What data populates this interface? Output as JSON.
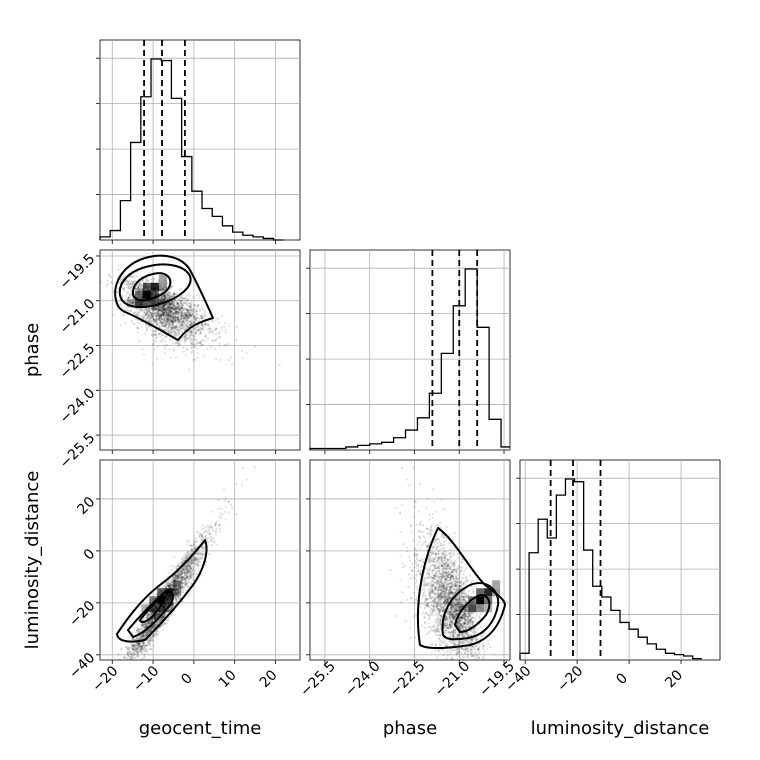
{
  "chart_data": {
    "type": "corner",
    "parameters": [
      "geocent_time",
      "phase",
      "luminosity_distance"
    ],
    "axes": {
      "geocent_time": {
        "label": "geocent_time",
        "range": [
          -23,
          26
        ],
        "ticks": [
          -20,
          -10,
          0,
          10,
          20
        ],
        "tick_labels": [
          "−20",
          "−10",
          "0",
          "10",
          "20"
        ]
      },
      "phase": {
        "label": "phase",
        "range": [
          -26,
          -19.3
        ],
        "ticks": [
          -25.5,
          -24.0,
          -22.5,
          -21.0,
          -19.5
        ],
        "tick_labels": [
          "−25.5",
          "−24.0",
          "−22.5",
          "−21.0",
          "−19.5"
        ]
      },
      "luminosity_distance": {
        "label": "luminosity_distance",
        "range": [
          -42,
          35
        ],
        "ticks": [
          -40,
          -20,
          0,
          20
        ],
        "tick_labels": [
          "−40",
          "−20",
          "0",
          "20"
        ]
      }
    },
    "histograms": [
      {
        "param": "geocent_time",
        "bin_edges": [
          -23,
          -20.5,
          -18,
          -15.5,
          -13,
          -10.5,
          -8,
          -5.5,
          -3,
          -0.5,
          2,
          4.5,
          7,
          9.5,
          12,
          14.5,
          17,
          19.5,
          22
        ],
        "counts": [
          2,
          6,
          25,
          62,
          91,
          115,
          114,
          90,
          53,
          31,
          20,
          15,
          9,
          5,
          3,
          2,
          1,
          0
        ],
        "quantiles": [
          -12.2,
          -7.8,
          -2.2
        ]
      },
      {
        "param": "phase",
        "bin_edges": [
          -26,
          -25.6,
          -25.2,
          -24.8,
          -24.4,
          -24.0,
          -23.6,
          -23.2,
          -22.8,
          -22.4,
          -22.0,
          -21.6,
          -21.2,
          -20.8,
          -20.4,
          -20.0,
          -19.6,
          -19.3
        ],
        "counts": [
          1,
          1,
          1,
          2,
          3,
          4,
          5,
          8,
          13,
          21,
          37,
          63,
          94,
          118,
          80,
          20,
          2
        ],
        "quantiles": [
          -21.9,
          -21.0,
          -20.4
        ]
      },
      {
        "param": "luminosity_distance",
        "bin_edges": [
          -42,
          -38.5,
          -35,
          -31.5,
          -28,
          -24.5,
          -21,
          -17.5,
          -14,
          -10.5,
          -7,
          -3.5,
          0,
          3.5,
          7,
          10.5,
          14,
          17.5,
          21,
          24.5,
          28
        ],
        "counts": [
          5,
          80,
          105,
          91,
          123,
          135,
          133,
          82,
          55,
          47,
          37,
          28,
          23,
          17,
          12,
          8,
          5,
          4,
          3,
          1
        ],
        "quantiles": [
          -30.2,
          -21.6,
          -11.0
        ]
      }
    ],
    "scatter_panels": [
      {
        "x": "geocent_time",
        "y": "phase",
        "density_peak": [
          -11.5,
          -20.8
        ],
        "contour_levels": 3
      },
      {
        "x": "geocent_time",
        "y": "luminosity_distance",
        "density_peak": [
          -8,
          -19
        ],
        "contour_levels": 3
      },
      {
        "x": "phase",
        "y": "luminosity_distance",
        "density_peak": [
          -20.3,
          -19
        ],
        "contour_levels": 3
      }
    ]
  }
}
